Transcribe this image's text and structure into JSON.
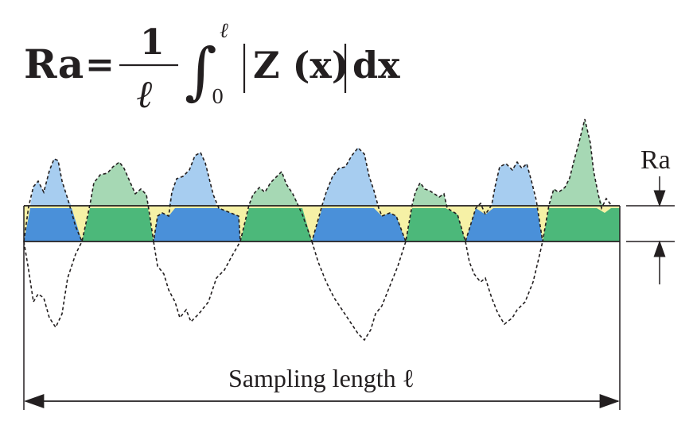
{
  "formula": {
    "lhs": "Ra",
    "equals": "=",
    "numerator": "1",
    "denominator": "ℓ",
    "integral": "∫",
    "upper_limit": "ℓ",
    "lower_limit": "0",
    "integrand_open": "|",
    "integrand": "Z (x)",
    "integrand_close": "|",
    "differential": "dx"
  },
  "labels": {
    "ra": "Ra",
    "sampling_length": "Sampling length ℓ"
  },
  "colors": {
    "blue_dark": "#4a90d9",
    "blue_light": "#a7cdf0",
    "green_dark": "#4cb87a",
    "green_light": "#a6d8b4",
    "yellow": "#f6f1a6",
    "ink": "#231f20"
  }
}
